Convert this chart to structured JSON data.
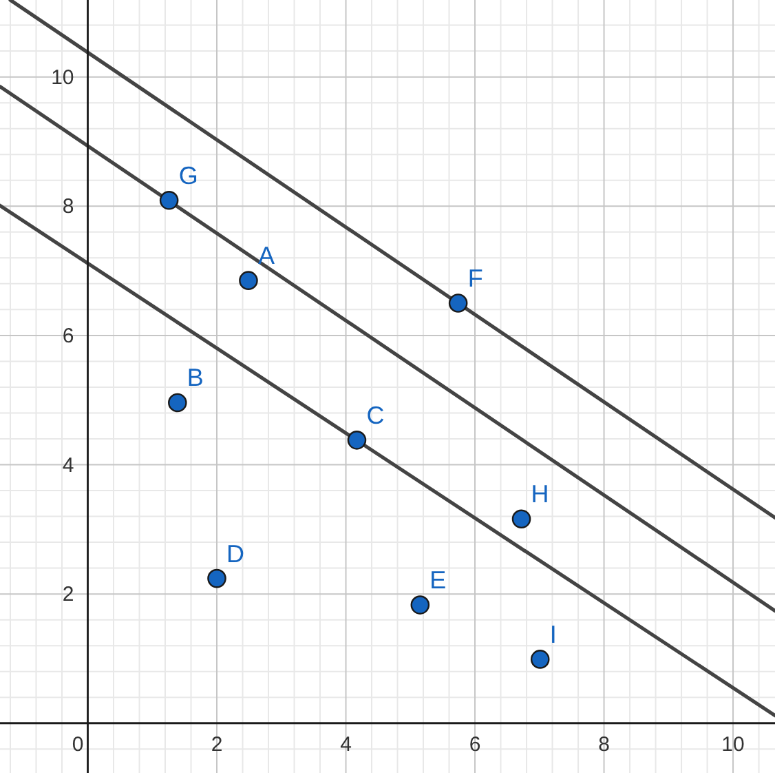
{
  "chart_data": {
    "type": "scatter",
    "xlim": [
      -1.36,
      10.65
    ],
    "ylim": [
      -0.77,
      11.19
    ],
    "xticks": [
      {
        "value": -1.2,
        "label": null
      },
      {
        "value": -0.8,
        "label": null
      },
      {
        "value": -0.4,
        "label": null
      },
      0,
      {
        "value": 0.4,
        "label": null
      },
      {
        "value": 0.8,
        "label": null
      },
      {
        "value": 1.2,
        "label": null
      },
      {
        "value": 1.6,
        "label": null
      },
      2,
      {
        "value": 2.4,
        "label": null
      },
      {
        "value": 2.8,
        "label": null
      },
      {
        "value": 3.2,
        "label": null
      },
      {
        "value": 3.6,
        "label": null
      },
      4,
      {
        "value": 4.4,
        "label": null
      },
      {
        "value": 4.8,
        "label": null
      },
      {
        "value": 5.2,
        "label": null
      },
      {
        "value": 5.6,
        "label": null
      },
      6,
      {
        "value": 6.4,
        "label": null
      },
      {
        "value": 6.8,
        "label": null
      },
      {
        "value": 7.2,
        "label": null
      },
      {
        "value": 7.6,
        "label": null
      },
      8,
      {
        "value": 8.4,
        "label": null
      },
      {
        "value": 8.8,
        "label": null
      },
      {
        "value": 9.2,
        "label": null
      },
      {
        "value": 9.6,
        "label": null
      },
      10,
      {
        "value": 10.4,
        "label": null
      }
    ],
    "yticks": [
      {
        "value": -0.4,
        "label": null
      },
      {
        "value": 0.4,
        "label": null
      },
      {
        "value": 0.8,
        "label": null
      },
      {
        "value": 1.2,
        "label": null
      },
      {
        "value": 1.6,
        "label": null
      },
      2,
      {
        "value": 2.4,
        "label": null
      },
      {
        "value": 2.8,
        "label": null
      },
      {
        "value": 3.2,
        "label": null
      },
      {
        "value": 3.6,
        "label": null
      },
      4,
      {
        "value": 4.4,
        "label": null
      },
      {
        "value": 4.8,
        "label": null
      },
      {
        "value": 5.2,
        "label": null
      },
      {
        "value": 5.6,
        "label": null
      },
      6,
      {
        "value": 6.4,
        "label": null
      },
      {
        "value": 6.8,
        "label": null
      },
      {
        "value": 7.2,
        "label": null
      },
      {
        "value": 7.6,
        "label": null
      },
      8,
      {
        "value": 8.4,
        "label": null
      },
      {
        "value": 8.8,
        "label": null
      },
      {
        "value": 9.2,
        "label": null
      },
      {
        "value": 9.6,
        "label": null
      },
      10,
      {
        "value": 10.4,
        "label": null
      },
      {
        "value": 10.8,
        "label": null
      }
    ],
    "grid": true,
    "series": [
      {
        "type": "scatter",
        "color": "#1565c0",
        "marker": "circle",
        "x": [
          2.49,
          1.39,
          4.17,
          2.0,
          5.15,
          5.74,
          1.26,
          6.72,
          7.01
        ],
        "values": [
          6.85,
          4.96,
          4.38,
          2.24,
          1.83,
          6.5,
          8.09,
          3.16,
          0.99
        ]
      },
      {
        "type": "line",
        "color": "#444444",
        "marker": "none",
        "x": [
          -1.2,
          10.65
        ],
        "values": [
          11.19,
          3.18
        ]
      },
      {
        "type": "line",
        "color": "#444444",
        "marker": "none",
        "x": [
          -1.36,
          10.65
        ],
        "values": [
          9.85,
          1.74
        ]
      },
      {
        "type": "line",
        "color": "#444444",
        "marker": "none",
        "x": [
          -1.36,
          10.65
        ],
        "values": [
          8.01,
          0.12
        ]
      }
    ],
    "annotations": [
      {
        "text": "A",
        "x": 2.49,
        "y": 6.85
      },
      {
        "text": "B",
        "x": 1.39,
        "y": 4.96
      },
      {
        "text": "C",
        "x": 4.17,
        "y": 4.38
      },
      {
        "text": "D",
        "x": 2.0,
        "y": 2.24
      },
      {
        "text": "E",
        "x": 5.15,
        "y": 1.83
      },
      {
        "text": "F",
        "x": 5.74,
        "y": 6.5
      },
      {
        "text": "G",
        "x": 1.26,
        "y": 8.09
      },
      {
        "text": "H",
        "x": 6.72,
        "y": 3.16
      },
      {
        "text": "I",
        "x": 7.01,
        "y": 0.99
      }
    ]
  }
}
